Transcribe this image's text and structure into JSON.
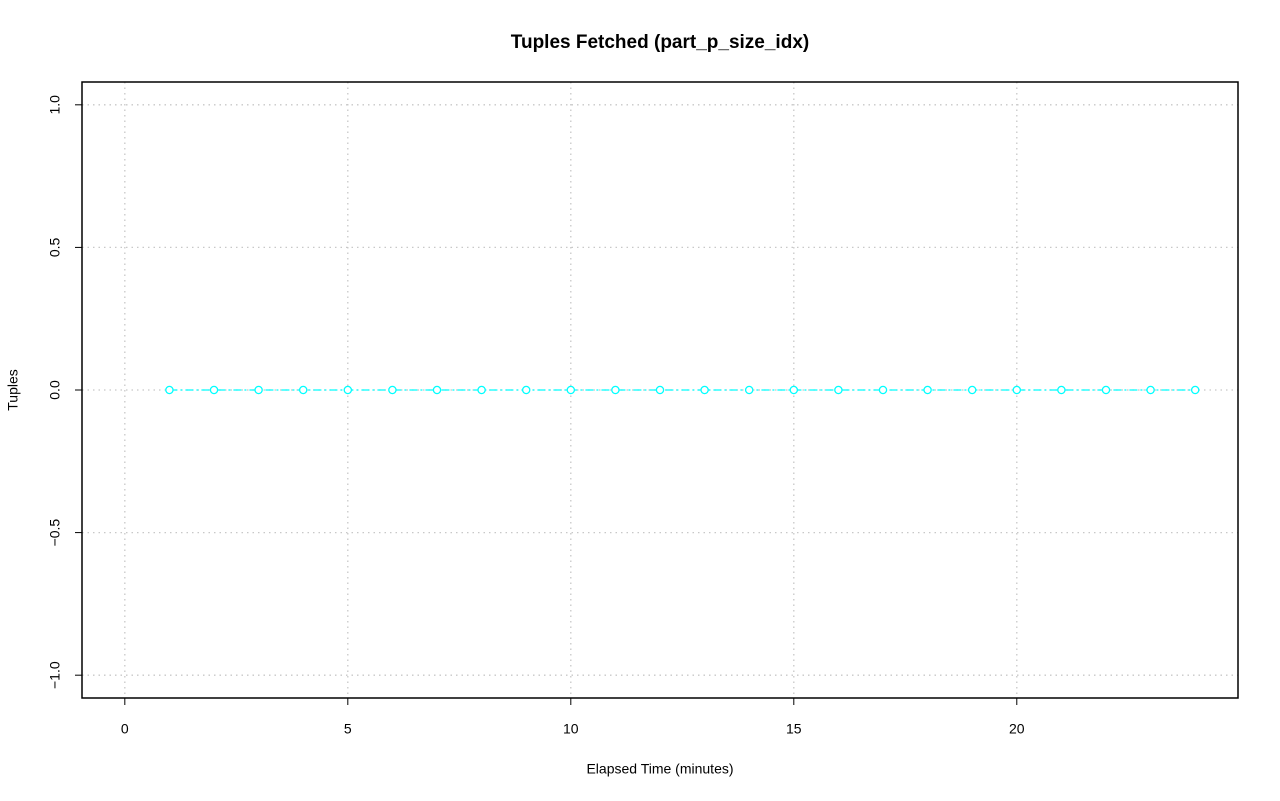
{
  "chart_data": {
    "type": "line",
    "title": "Tuples Fetched (part_p_size_idx)",
    "x_label": "Elapsed Time (minutes)",
    "y_label": "Tuples",
    "x": [
      1,
      2,
      3,
      4,
      5,
      6,
      7,
      8,
      9,
      10,
      11,
      12,
      13,
      14,
      15,
      16,
      17,
      18,
      19,
      20,
      21,
      22,
      23,
      24
    ],
    "series": [
      {
        "color": "#00ffff",
        "values": [
          0,
          0,
          0,
          0,
          0,
          0,
          0,
          0,
          0,
          0,
          0,
          0,
          0,
          0,
          0,
          0,
          0,
          0,
          0,
          0,
          0,
          0,
          0,
          0
        ]
      }
    ],
    "xlim": [
      -0.96,
      24.96
    ],
    "xticks": [
      0,
      5,
      10,
      15,
      20
    ],
    "ylim": [
      -1.08,
      1.08
    ],
    "yticks": [
      {
        "value": -1,
        "label": "−1.0"
      },
      {
        "value": -0.5,
        "label": "−0.5"
      },
      {
        "value": 0,
        "label": "0.0"
      },
      {
        "value": 0.5,
        "label": "0.5"
      },
      {
        "value": 1,
        "label": "1.0"
      }
    ],
    "grid": true
  }
}
